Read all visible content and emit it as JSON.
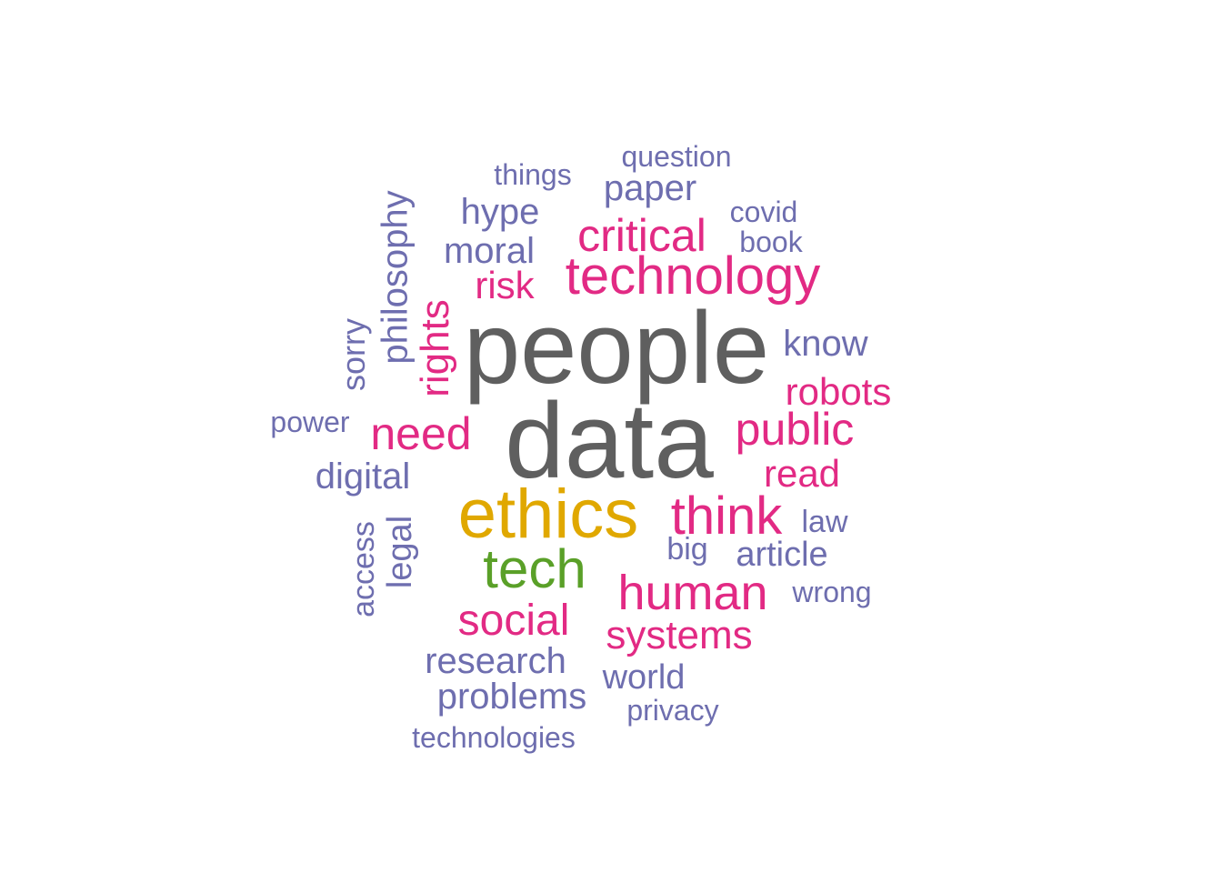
{
  "colors": {
    "gray": "#5f5f5f",
    "gold": "#e0a800",
    "green": "#5aa028",
    "pink": "#e22a84",
    "purple": "#6e6eaf"
  },
  "words": [
    {
      "text": "people",
      "color": "#5f5f5f"
    },
    {
      "text": "data",
      "color": "#5f5f5f"
    },
    {
      "text": "ethics",
      "color": "#e0a800"
    },
    {
      "text": "tech",
      "color": "#5aa028"
    },
    {
      "text": "technology",
      "color": "#e22a84"
    },
    {
      "text": "critical",
      "color": "#e22a84"
    },
    {
      "text": "think",
      "color": "#e22a84"
    },
    {
      "text": "human",
      "color": "#e22a84"
    },
    {
      "text": "public",
      "color": "#e22a84"
    },
    {
      "text": "need",
      "color": "#e22a84"
    },
    {
      "text": "social",
      "color": "#e22a84"
    },
    {
      "text": "systems",
      "color": "#e22a84"
    },
    {
      "text": "robots",
      "color": "#e22a84"
    },
    {
      "text": "read",
      "color": "#e22a84"
    },
    {
      "text": "risk",
      "color": "#e22a84"
    },
    {
      "text": "rights",
      "color": "#e22a84"
    },
    {
      "text": "philosophy",
      "color": "#6e6eaf"
    },
    {
      "text": "sorry",
      "color": "#6e6eaf"
    },
    {
      "text": "hype",
      "color": "#6e6eaf"
    },
    {
      "text": "moral",
      "color": "#6e6eaf"
    },
    {
      "text": "paper",
      "color": "#6e6eaf"
    },
    {
      "text": "things",
      "color": "#6e6eaf"
    },
    {
      "text": "question",
      "color": "#6e6eaf"
    },
    {
      "text": "covid",
      "color": "#6e6eaf"
    },
    {
      "text": "book",
      "color": "#6e6eaf"
    },
    {
      "text": "know",
      "color": "#6e6eaf"
    },
    {
      "text": "power",
      "color": "#6e6eaf"
    },
    {
      "text": "digital",
      "color": "#6e6eaf"
    },
    {
      "text": "access",
      "color": "#6e6eaf"
    },
    {
      "text": "legal",
      "color": "#6e6eaf"
    },
    {
      "text": "law",
      "color": "#6e6eaf"
    },
    {
      "text": "big",
      "color": "#6e6eaf"
    },
    {
      "text": "article",
      "color": "#6e6eaf"
    },
    {
      "text": "wrong",
      "color": "#6e6eaf"
    },
    {
      "text": "research",
      "color": "#6e6eaf"
    },
    {
      "text": "problems",
      "color": "#6e6eaf"
    },
    {
      "text": "world",
      "color": "#6e6eaf"
    },
    {
      "text": "privacy",
      "color": "#6e6eaf"
    },
    {
      "text": "technologies",
      "color": "#6e6eaf"
    }
  ]
}
